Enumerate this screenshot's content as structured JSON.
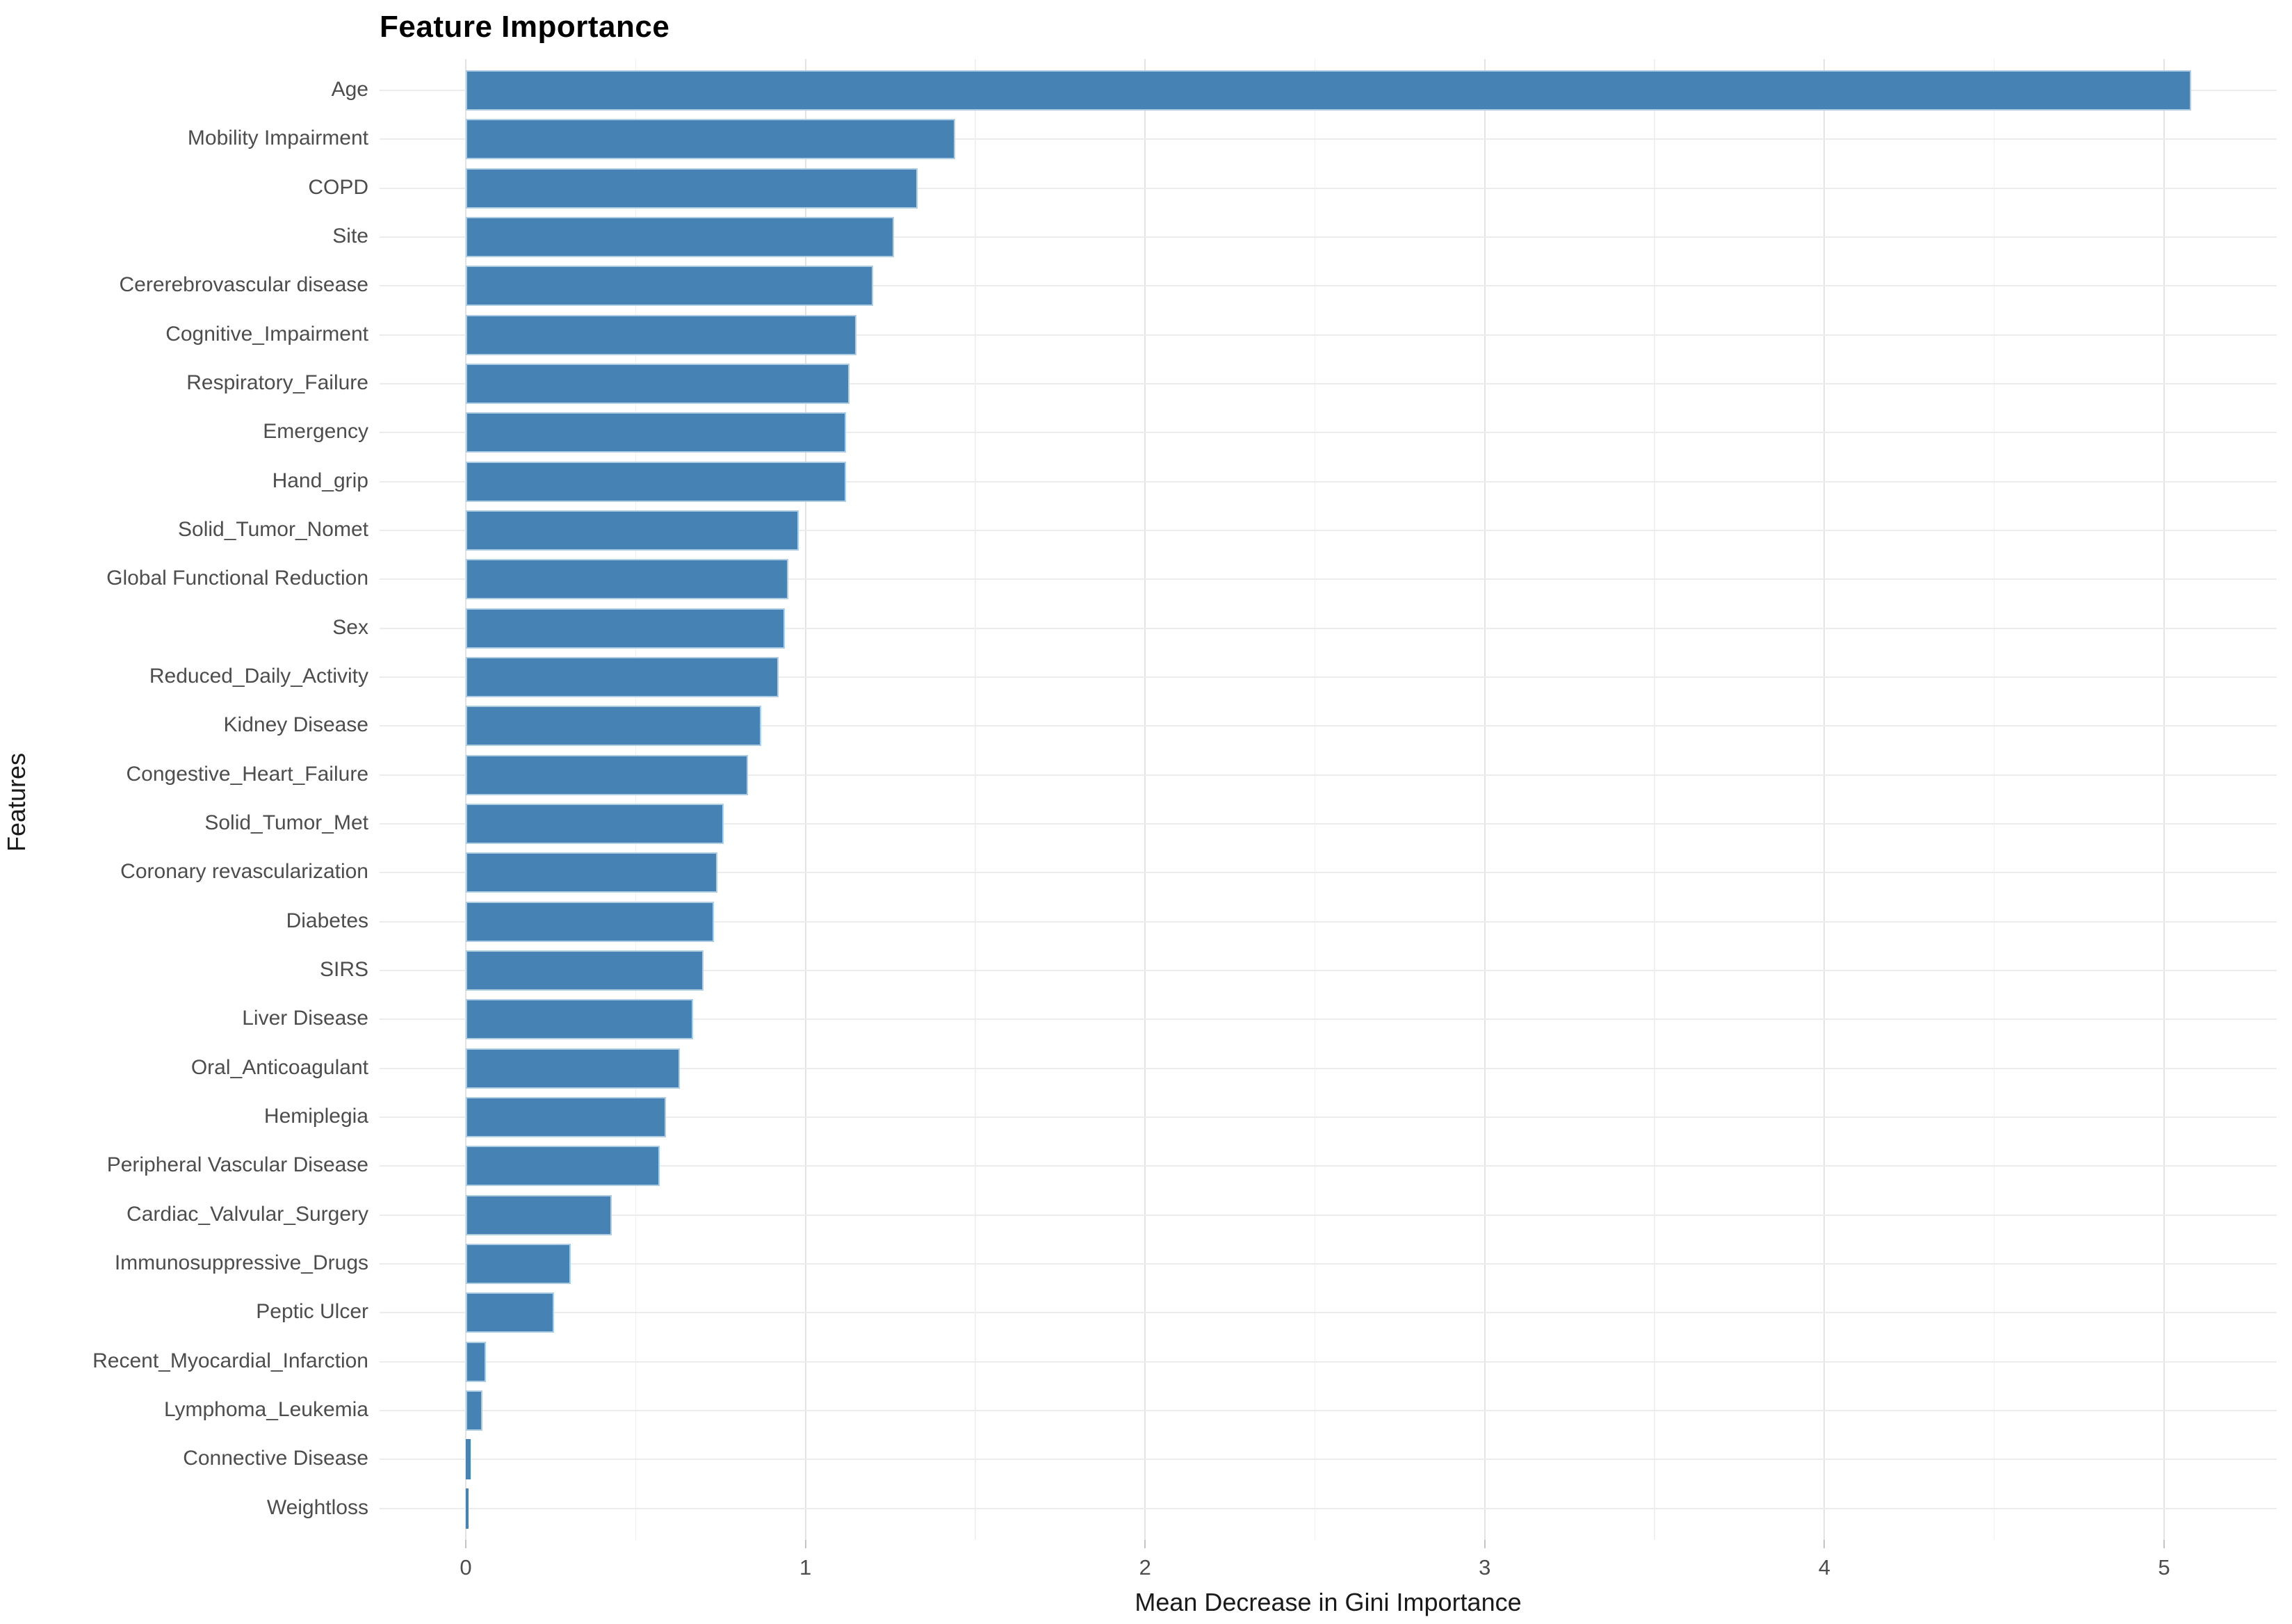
{
  "chart_data": {
    "type": "bar",
    "orientation": "horizontal",
    "title": "Feature Importance",
    "xlabel": "Mean Decrease in Gini Importance",
    "ylabel": "Features",
    "x_ticks": [
      0,
      1,
      2,
      3,
      4,
      5
    ],
    "x_minor_ticks": [
      0.5,
      1.5,
      2.5,
      3.5,
      4.5
    ],
    "xlim": [
      -0.25,
      5.33
    ],
    "grid": "major+minor vertical, per-category horizontal",
    "legend": "none",
    "bar_color": "#4682b4",
    "bar_border_color": "#aecde3",
    "categories": [
      "Age",
      "Mobility Impairment",
      "COPD",
      "Site",
      "Cererebrovascular disease",
      "Cognitive_Impairment",
      "Respiratory_Failure",
      "Emergency",
      "Hand_grip",
      "Solid_Tumor_Nomet",
      "Global Functional Reduction",
      "Sex",
      "Reduced_Daily_Activity",
      "Kidney Disease",
      "Congestive_Heart_Failure",
      "Solid_Tumor_Met",
      "Coronary revascularization",
      "Diabetes",
      "SIRS",
      "Liver Disease",
      "Oral_Anticoagulant",
      "Hemiplegia",
      "Peripheral Vascular Disease",
      "Cardiac_Valvular_Surgery",
      "Immunosuppressive_Drugs",
      "Peptic Ulcer",
      "Recent_Myocardial_Infarction",
      "Lymphoma_Leukemia",
      "Connective Disease",
      "Weightloss"
    ],
    "values": [
      5.08,
      1.44,
      1.33,
      1.26,
      1.2,
      1.15,
      1.13,
      1.12,
      1.12,
      0.98,
      0.95,
      0.94,
      0.92,
      0.87,
      0.83,
      0.76,
      0.74,
      0.73,
      0.7,
      0.67,
      0.63,
      0.59,
      0.57,
      0.43,
      0.31,
      0.26,
      0.06,
      0.05,
      0.015,
      0.008
    ]
  }
}
